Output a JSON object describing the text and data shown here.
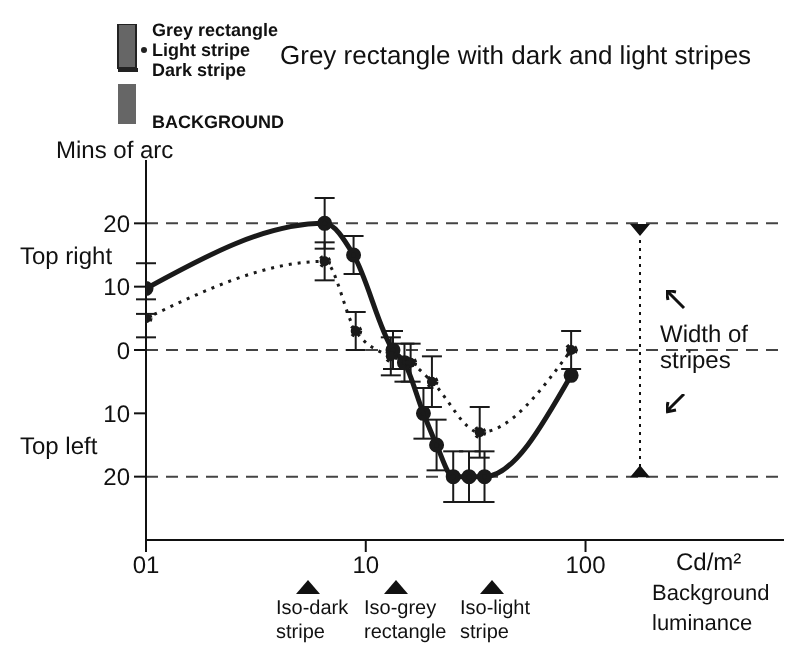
{
  "chart_data": {
    "type": "line",
    "title": "Grey rectangle with dark and light stripes",
    "ylabel": "Mins of arc",
    "xlabel": "Cd/m²",
    "log": "x",
    "marker": "circle",
    "xlim": [
      1,
      800
    ],
    "xticks": [
      {
        "value": 1,
        "label": "01"
      },
      10,
      100
    ],
    "ylim": [
      -30,
      30
    ],
    "yticks": [
      {
        "value": -20,
        "label": "20"
      },
      {
        "value": -10,
        "label": "10"
      },
      0,
      10,
      20
    ],
    "ref_lines": [
      {
        "axis": "y",
        "value": 20,
        "label": null,
        "line_style": "dashed"
      },
      {
        "axis": "y",
        "value": 0,
        "label": null,
        "line_style": "dashed"
      },
      {
        "axis": "y",
        "value": -20,
        "label": null,
        "line_style": "dashed"
      }
    ],
    "series": [
      {
        "color": "#1a1a1a",
        "line_style": "solid",
        "x": [
          1,
          6.5,
          8.8,
          13.3,
          15,
          18.3,
          21,
          25,
          29.5,
          34.7,
          86
        ],
        "values": [
          9.7,
          20,
          15,
          0,
          -2,
          -10,
          -15,
          -20,
          -20,
          -20,
          -4
        ],
        "errors": [
          4,
          4,
          3,
          3,
          3,
          4,
          4,
          4,
          4,
          4,
          null
        ]
      },
      {
        "color": "#1a1a1a",
        "line_style": "dotted",
        "x": [
          1,
          6.5,
          9,
          13,
          16,
          20,
          33,
          86
        ],
        "values": [
          5,
          14,
          3,
          -1,
          -2,
          -5,
          -13,
          0
        ],
        "errors": [
          3,
          3,
          3,
          3,
          3,
          4,
          4,
          3
        ]
      }
    ],
    "annotations": [
      "Grey rectangle",
      "Light stripe",
      "Dark stripe",
      "BACKGROUND",
      "Top right",
      "Top left",
      "Width of stripes",
      "Background luminance",
      "Iso-dark stripe",
      "Iso-grey rectangle",
      "Iso-light stripe"
    ]
  }
}
